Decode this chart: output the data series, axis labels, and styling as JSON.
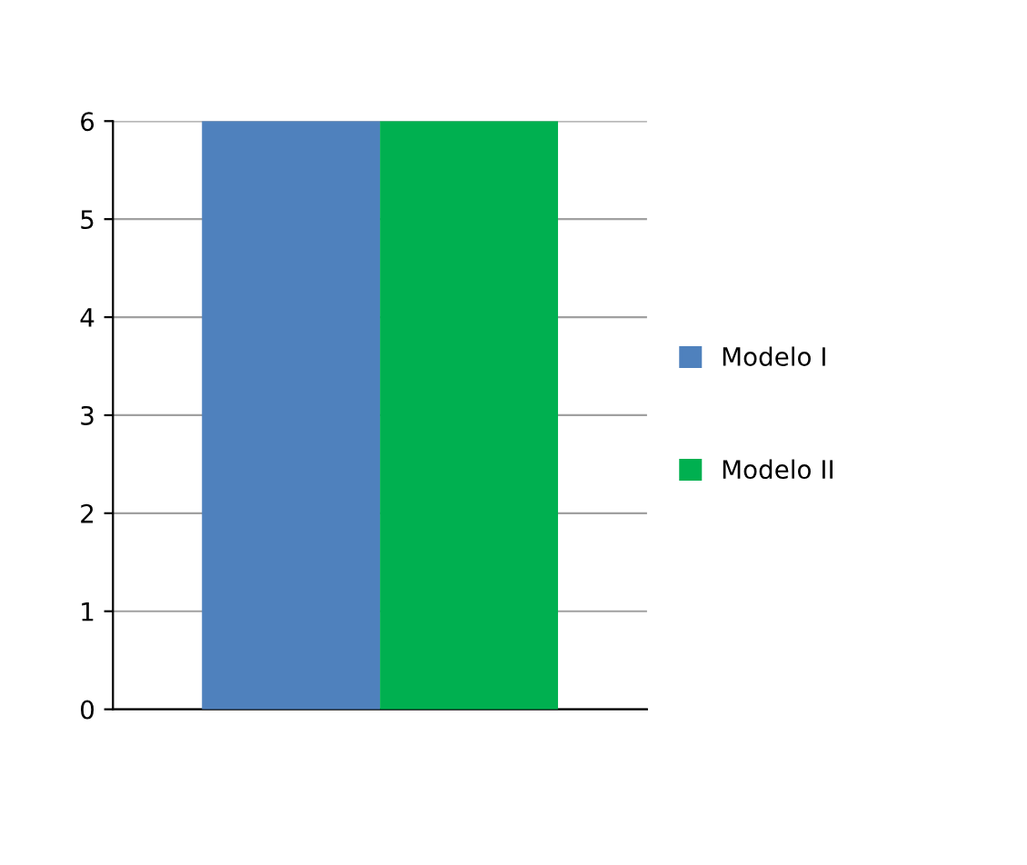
{
  "chart_data": {
    "type": "bar",
    "categories": [
      null
    ],
    "series": [
      {
        "name": "Modelo I",
        "color": "#4f81bd",
        "values": [
          6
        ]
      },
      {
        "name": "Modelo II",
        "color": "#00b050",
        "values": [
          6
        ]
      }
    ],
    "ylim": [
      0,
      6
    ],
    "yticks": [
      0,
      1,
      2,
      3,
      4,
      5,
      6
    ],
    "grid": "y",
    "legend": "right"
  }
}
